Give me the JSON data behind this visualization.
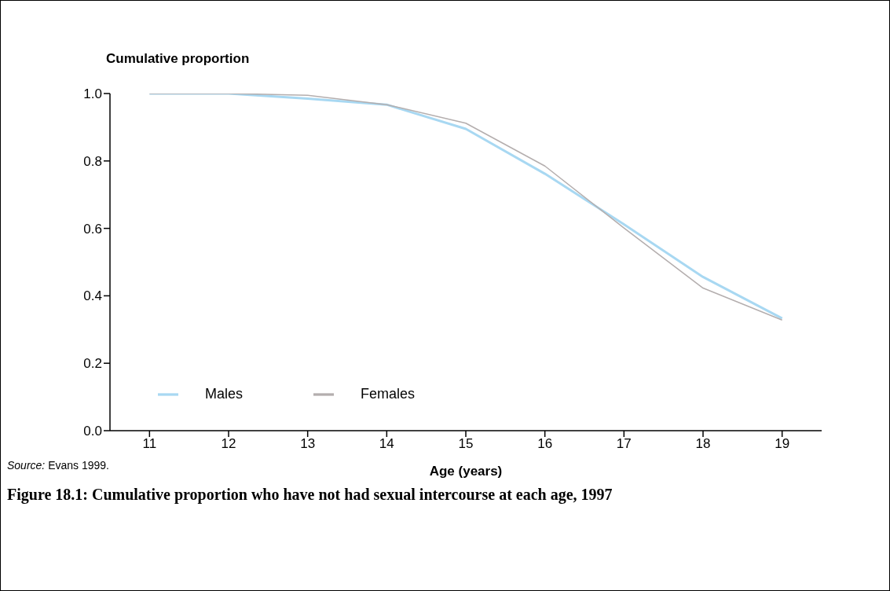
{
  "chart_data": {
    "type": "line",
    "ylabel": "Cumulative proportion",
    "xlabel": "Age (years)",
    "title": "Figure 18.1: Cumulative proportion who have not had sexual intercourse at each age, 1997",
    "annotations": [
      "Source: Evans 1999."
    ],
    "x": [
      11,
      12,
      13,
      14,
      15,
      16,
      17,
      18,
      19
    ],
    "series": [
      {
        "name": "Males",
        "color": "#a8d8f2",
        "values": [
          1.0,
          1.0,
          0.985,
          0.967,
          0.895,
          0.762,
          0.612,
          0.456,
          0.333
        ]
      },
      {
        "name": "Females",
        "color": "#b4aeae",
        "values": [
          1.0,
          1.0,
          0.995,
          0.967,
          0.912,
          0.785,
          0.601,
          0.423,
          0.328
        ]
      }
    ],
    "xlim": [
      10.5,
      19.5
    ],
    "xticks": [
      11,
      12,
      13,
      14,
      15,
      16,
      17,
      18,
      19
    ],
    "ylim": [
      0,
      1
    ],
    "yticks": [
      {
        "value": 0,
        "label": "0.0"
      },
      {
        "value": 0.2,
        "label": "0.2"
      },
      {
        "value": 0.4,
        "label": "0.4"
      },
      {
        "value": 0.6,
        "label": "0.6"
      },
      {
        "value": 0.8,
        "label": "0.8"
      },
      {
        "value": 1,
        "label": "1.0"
      }
    ],
    "grid": false,
    "legend": "bottom left",
    "marker": "none",
    "line_style": "solid"
  }
}
